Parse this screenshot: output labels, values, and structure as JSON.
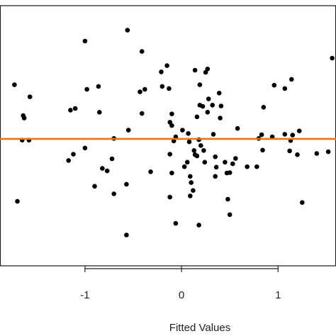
{
  "chart_data": {
    "type": "scatter",
    "xlabel": "Fitted Values",
    "ylabel": "",
    "xlim": [
      -1.88,
      1.6
    ],
    "ylim": [
      -3.05,
      3.2
    ],
    "x_ticks": [
      -1,
      0,
      1
    ],
    "x_tick_labels": [
      "-1",
      "0",
      "1"
    ],
    "grid": false,
    "reference_line": {
      "y": 0,
      "color": "#e8751a"
    },
    "point_color": "#000000",
    "points": [
      {
        "x": -1.73,
        "y": 1.3
      },
      {
        "x": -1.64,
        "y": 0.56
      },
      {
        "x": -1.63,
        "y": 0.5
      },
      {
        "x": -1.65,
        "y": -0.03
      },
      {
        "x": -1.58,
        "y": -0.03
      },
      {
        "x": -1.57,
        "y": 1.01
      },
      {
        "x": -1.7,
        "y": -1.5
      },
      {
        "x": -1.1,
        "y": 0.73
      },
      {
        "x": -1.15,
        "y": 0.69
      },
      {
        "x": -1.0,
        "y": 2.35
      },
      {
        "x": -0.98,
        "y": 1.19
      },
      {
        "x": -0.86,
        "y": 1.26
      },
      {
        "x": -0.85,
        "y": 0.64
      },
      {
        "x": -1.12,
        "y": -0.37
      },
      {
        "x": -1.17,
        "y": -0.52
      },
      {
        "x": -1.0,
        "y": -0.22
      },
      {
        "x": -0.82,
        "y": -0.71
      },
      {
        "x": -0.77,
        "y": -0.77
      },
      {
        "x": -0.9,
        "y": -1.14
      },
      {
        "x": -0.7,
        "y": -1.32
      },
      {
        "x": -0.7,
        "y": 0.01
      },
      {
        "x": -0.56,
        "y": 2.61
      },
      {
        "x": -0.55,
        "y": 0.21
      },
      {
        "x": -0.57,
        "y": -1.09
      },
      {
        "x": -0.57,
        "y": -2.31
      },
      {
        "x": -0.72,
        "y": -0.48
      },
      {
        "x": -0.41,
        "y": 2.1
      },
      {
        "x": -0.41,
        "y": 0.61
      },
      {
        "x": -0.43,
        "y": 1.13
      },
      {
        "x": -0.38,
        "y": 1.19
      },
      {
        "x": -0.32,
        "y": -0.79
      },
      {
        "x": -0.21,
        "y": 1.61
      },
      {
        "x": -0.2,
        "y": 1.26
      },
      {
        "x": -0.15,
        "y": 1.76
      },
      {
        "x": -0.13,
        "y": 1.21
      },
      {
        "x": -0.1,
        "y": 0.6
      },
      {
        "x": -0.12,
        "y": 0.4
      },
      {
        "x": -0.1,
        "y": 0.32
      },
      {
        "x": -0.12,
        "y": -0.37
      },
      {
        "x": -0.1,
        "y": -0.82
      },
      {
        "x": -0.12,
        "y": -1.4
      },
      {
        "x": -0.06,
        "y": -2.03
      },
      {
        "x": -0.08,
        "y": -0.05
      },
      {
        "x": -0.06,
        "y": 0.05
      },
      {
        "x": 0.01,
        "y": 0.21
      },
      {
        "x": 0.07,
        "y": 0.13
      },
      {
        "x": 0.08,
        "y": -0.07
      },
      {
        "x": 0.03,
        "y": -0.67
      },
      {
        "x": 0.06,
        "y": -0.56
      },
      {
        "x": 0.09,
        "y": -0.9
      },
      {
        "x": 0.1,
        "y": -1.05
      },
      {
        "x": 0.12,
        "y": -1.24
      },
      {
        "x": 0.09,
        "y": -1.37
      },
      {
        "x": 0.13,
        "y": -0.28
      },
      {
        "x": 0.14,
        "y": -0.38
      },
      {
        "x": 0.16,
        "y": -0.41
      },
      {
        "x": 0.18,
        "y": -0.02
      },
      {
        "x": 0.2,
        "y": -0.16
      },
      {
        "x": 0.23,
        "y": -0.28
      },
      {
        "x": 0.24,
        "y": -0.56
      },
      {
        "x": 0.18,
        "y": -2.07
      },
      {
        "x": 0.16,
        "y": 0.53
      },
      {
        "x": 0.19,
        "y": 0.81
      },
      {
        "x": 0.19,
        "y": 1.3
      },
      {
        "x": 0.14,
        "y": 1.65
      },
      {
        "x": 0.25,
        "y": 1.6
      },
      {
        "x": 0.28,
        "y": 0.96
      },
      {
        "x": 0.27,
        "y": 1.68
      },
      {
        "x": 0.22,
        "y": 0.78
      },
      {
        "x": 0.27,
        "y": 0.64
      },
      {
        "x": 0.32,
        "y": 0.81
      },
      {
        "x": 0.33,
        "y": 0.11
      },
      {
        "x": 0.35,
        "y": -0.43
      },
      {
        "x": 0.36,
        "y": -0.68
      },
      {
        "x": 0.35,
        "y": -0.9
      },
      {
        "x": 0.4,
        "y": 0.5
      },
      {
        "x": 0.41,
        "y": 0.79
      },
      {
        "x": 0.39,
        "y": 1.1
      },
      {
        "x": 0.45,
        "y": -0.56
      },
      {
        "x": 0.47,
        "y": -0.82
      },
      {
        "x": 0.5,
        "y": -0.81
      },
      {
        "x": 0.48,
        "y": -1.45
      },
      {
        "x": 0.5,
        "y": -1.82
      },
      {
        "x": 0.53,
        "y": -0.6
      },
      {
        "x": 0.56,
        "y": -0.47
      },
      {
        "x": 0.58,
        "y": 0.25
      },
      {
        "x": 0.68,
        "y": -0.67
      },
      {
        "x": 0.78,
        "y": -0.67
      },
      {
        "x": 0.8,
        "y": 0.01
      },
      {
        "x": 0.83,
        "y": 0.1
      },
      {
        "x": 0.84,
        "y": -0.27
      },
      {
        "x": 0.85,
        "y": 0.76
      },
      {
        "x": 0.94,
        "y": 0.05
      },
      {
        "x": 0.96,
        "y": 1.29
      },
      {
        "x": 1.07,
        "y": 1.21
      },
      {
        "x": 1.07,
        "y": 0.11
      },
      {
        "x": 1.13,
        "y": -0.04
      },
      {
        "x": 1.12,
        "y": -0.29
      },
      {
        "x": 1.14,
        "y": 1.43
      },
      {
        "x": 1.15,
        "y": 0.09
      },
      {
        "x": 1.2,
        "y": -0.38
      },
      {
        "x": 1.22,
        "y": 0.19
      },
      {
        "x": 1.25,
        "y": -1.53
      },
      {
        "x": 1.4,
        "y": -0.35
      },
      {
        "x": 1.52,
        "y": -0.31
      },
      {
        "x": 1.56,
        "y": 1.94
      }
    ]
  }
}
